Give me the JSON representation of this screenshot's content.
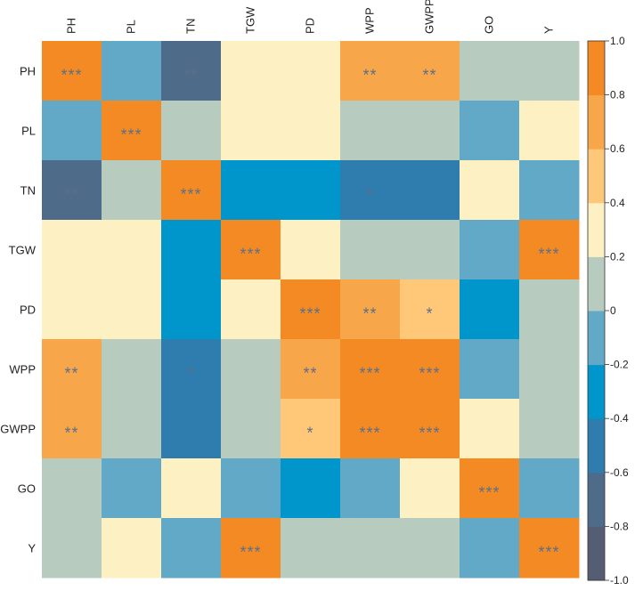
{
  "chart_data": {
    "type": "heatmap",
    "title": "",
    "variables": [
      "PH",
      "PL",
      "TN",
      "TGW",
      "PD",
      "WPP",
      "GWPP",
      "GO",
      "Y"
    ],
    "values": [
      [
        1.0,
        -0.1,
        -0.7,
        0.3,
        0.3,
        0.7,
        0.7,
        0.1,
        0.1
      ],
      [
        -0.1,
        1.0,
        0.1,
        0.3,
        0.3,
        0.1,
        0.1,
        -0.1,
        0.3
      ],
      [
        -0.7,
        0.1,
        1.0,
        -0.3,
        -0.3,
        -0.5,
        -0.5,
        0.3,
        -0.1
      ],
      [
        0.3,
        0.3,
        -0.3,
        1.0,
        0.3,
        0.1,
        0.1,
        -0.1,
        0.9
      ],
      [
        0.3,
        0.3,
        -0.3,
        0.3,
        1.0,
        0.7,
        0.5,
        -0.3,
        0.1
      ],
      [
        0.7,
        0.1,
        -0.5,
        0.1,
        0.7,
        1.0,
        0.9,
        -0.1,
        0.1
      ],
      [
        0.7,
        0.1,
        -0.5,
        0.1,
        0.5,
        0.9,
        1.0,
        0.3,
        0.1
      ],
      [
        0.1,
        -0.1,
        0.3,
        -0.1,
        -0.3,
        -0.1,
        0.3,
        1.0,
        -0.1
      ],
      [
        0.1,
        0.3,
        -0.1,
        0.9,
        0.1,
        0.1,
        0.1,
        -0.1,
        1.0
      ]
    ],
    "significance": [
      [
        "***",
        "",
        "**",
        "",
        "",
        "**",
        "**",
        "",
        ""
      ],
      [
        "",
        "***",
        "",
        "",
        "",
        "",
        "",
        "",
        ""
      ],
      [
        "**",
        "",
        "***",
        "",
        "",
        "*",
        "",
        "",
        ""
      ],
      [
        "",
        "",
        "",
        "***",
        "",
        "",
        "",
        "",
        "***"
      ],
      [
        "",
        "",
        "",
        "",
        "***",
        "**",
        "*",
        "",
        ""
      ],
      [
        "**",
        "",
        "*",
        "",
        "**",
        "***",
        "***",
        "",
        ""
      ],
      [
        "**",
        "",
        "",
        "",
        "*",
        "***",
        "***",
        "",
        ""
      ],
      [
        "",
        "",
        "",
        "",
        "",
        "",
        "",
        "***",
        ""
      ],
      [
        "",
        "",
        "",
        "***",
        "",
        "",
        "",
        "",
        "***"
      ]
    ],
    "colorbar": {
      "range": [
        -1.0,
        1.0
      ],
      "ticks": [
        -1.0,
        -0.8,
        -0.6,
        -0.4,
        -0.2,
        0,
        0.2,
        0.4,
        0.6,
        0.8,
        1.0
      ],
      "tick_labels": [
        "-1.0",
        "-0.8",
        "-0.6",
        "-0.4",
        "-0.2",
        "0",
        "0.2",
        "0.4",
        "0.6",
        "0.8",
        "1.0"
      ],
      "bins": [
        {
          "min": -1.0,
          "max": -0.8,
          "color": "#555d72"
        },
        {
          "min": -0.8,
          "max": -0.6,
          "color": "#4e6c8a"
        },
        {
          "min": -0.6,
          "max": -0.4,
          "color": "#2f7daf"
        },
        {
          "min": -0.4,
          "max": -0.2,
          "color": "#0096cb"
        },
        {
          "min": -0.2,
          "max": 0.0,
          "color": "#61a9c6"
        },
        {
          "min": 0.0,
          "max": 0.2,
          "color": "#b7ccbe"
        },
        {
          "min": 0.2,
          "max": 0.4,
          "color": "#fdf0c2"
        },
        {
          "min": 0.4,
          "max": 0.6,
          "color": "#fec878"
        },
        {
          "min": 0.6,
          "max": 0.8,
          "color": "#f8a64a"
        },
        {
          "min": 0.8,
          "max": 1.0,
          "color": "#f48a24"
        }
      ]
    },
    "x_labels_position": "top",
    "x_labels_rotation": "vertical",
    "legend": "colorbar-right"
  }
}
